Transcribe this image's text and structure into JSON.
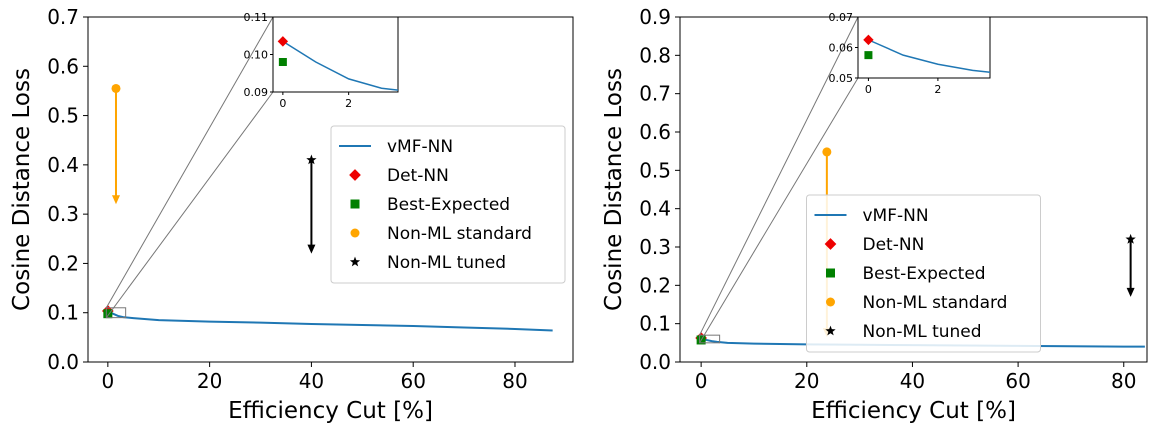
{
  "chart_data": [
    {
      "type": "line",
      "xlabel": "Efficiency Cut [%]",
      "ylabel": "Cosine Distance Loss",
      "xlim": [
        -3.9,
        91.4
      ],
      "ylim": [
        0,
        0.7
      ],
      "xticks": [
        0,
        20,
        40,
        60,
        80
      ],
      "yticks": [
        {
          "value": 0,
          "label": "0.0"
        },
        0.1,
        0.2,
        0.3,
        0.4,
        0.5,
        0.6,
        0.7
      ],
      "legend": "center right",
      "series": [
        {
          "name": "vMF-NN",
          "color": "#1f77b4",
          "marker": "line",
          "x": [
            0,
            1,
            2,
            3,
            5,
            10,
            20,
            30,
            40,
            50,
            60,
            70,
            80,
            87.4
          ],
          "values": [
            0.1035,
            0.098,
            0.0935,
            0.091,
            0.089,
            0.085,
            0.082,
            0.08,
            0.077,
            0.075,
            0.073,
            0.07,
            0.067,
            0.064
          ]
        },
        {
          "name": "Det-NN",
          "color": "#ee0000",
          "marker": "diamond",
          "x": [
            0
          ],
          "values": [
            0.1035
          ]
        },
        {
          "name": "Best-Expected",
          "color": "#008000",
          "marker": "square",
          "x": [
            0
          ],
          "values": [
            0.098
          ]
        },
        {
          "name": "Non-ML standard",
          "color": "#ffa500",
          "marker": "circle",
          "x": [
            1.6
          ],
          "values": [
            0.555
          ],
          "arrow_end": [
            0.32
          ]
        },
        {
          "name": "Non-ML tuned",
          "color": "#000000",
          "marker": "star",
          "x": [
            40
          ],
          "values": [
            0.41
          ],
          "arrow_end": [
            0.22
          ]
        }
      ],
      "inset": {
        "xlim": [
          -0.3,
          3.5
        ],
        "ylim": [
          0.09,
          0.11
        ],
        "xticks": [
          0,
          2
        ],
        "yticks": [
          0.09,
          {
            "value": 0.1,
            "label": "0.10"
          },
          0.11
        ]
      }
    },
    {
      "type": "line",
      "xlabel": "Efficiency Cut [%]",
      "ylabel": "Cosine Distance Loss",
      "xlim": [
        -4,
        84.4
      ],
      "ylim": [
        0,
        0.9
      ],
      "xticks": [
        0,
        20,
        40,
        60,
        80
      ],
      "yticks": [
        {
          "value": 0,
          "label": "0.0"
        },
        0.1,
        0.2,
        0.3,
        0.4,
        0.5,
        0.6,
        0.7,
        0.8,
        0.9
      ],
      "legend": "lower center",
      "series": [
        {
          "name": "vMF-NN",
          "color": "#1f77b4",
          "marker": "line",
          "x": [
            0,
            1,
            2,
            3,
            5,
            10,
            20,
            30,
            40,
            50,
            60,
            70,
            80,
            84
          ],
          "values": [
            0.0625,
            0.0575,
            0.0545,
            0.0525,
            0.05,
            0.048,
            0.046,
            0.045,
            0.044,
            0.043,
            0.042,
            0.041,
            0.04,
            0.04
          ]
        },
        {
          "name": "Det-NN",
          "color": "#ee0000",
          "marker": "diamond",
          "x": [
            0
          ],
          "values": [
            0.0625
          ]
        },
        {
          "name": "Best-Expected",
          "color": "#008000",
          "marker": "square",
          "x": [
            0
          ],
          "values": [
            0.0575
          ]
        },
        {
          "name": "Non-ML standard",
          "color": "#ffa500",
          "marker": "circle",
          "x": [
            23.8
          ],
          "values": [
            0.548
          ],
          "arrow_end": [
            0.065
          ]
        },
        {
          "name": "Non-ML tuned",
          "color": "#000000",
          "marker": "star",
          "x": [
            81.3
          ],
          "values": [
            0.32
          ],
          "arrow_end": [
            0.17
          ]
        }
      ],
      "inset": {
        "xlim": [
          -0.3,
          3.5
        ],
        "ylim": [
          0.05,
          0.07
        ],
        "xticks": [
          0,
          2
        ],
        "yticks": [
          0.05,
          0.06,
          0.07
        ]
      }
    }
  ]
}
